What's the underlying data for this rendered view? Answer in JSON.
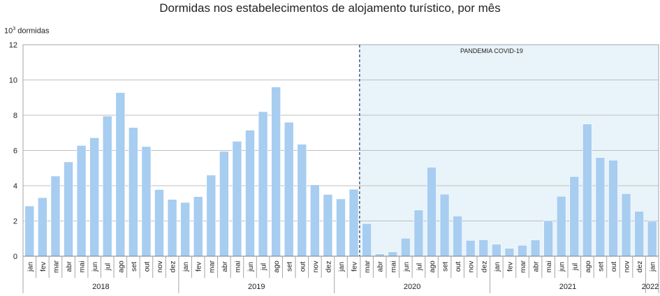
{
  "chart_data": {
    "type": "bar",
    "title": "Dormidas nos estabelecimentos de alojamento turístico, por mês",
    "ylabel_base": "10",
    "ylabel_exp": "3",
    "ylabel_rest": " dormidas",
    "ylim": [
      0,
      12
    ],
    "yticks": [
      "0",
      "2",
      "4",
      "6",
      "8",
      "10",
      "12"
    ],
    "grid": true,
    "bar_color": "#a7cdf0",
    "shade_color": "#e8f3fa",
    "annotation": "PANDEMIA COVID-19",
    "months": [
      "jan",
      "fev",
      "mar",
      "abr",
      "mai",
      "jun",
      "jul",
      "ago",
      "set",
      "out",
      "nov",
      "dez"
    ],
    "years": [
      {
        "label": "2018",
        "values": [
          2.85,
          3.32,
          4.55,
          5.35,
          6.28,
          6.72,
          7.95,
          9.28,
          7.3,
          6.22,
          3.78,
          3.22
        ]
      },
      {
        "label": "2019",
        "values": [
          3.05,
          3.38,
          4.6,
          5.95,
          6.52,
          7.15,
          8.2,
          9.6,
          7.6,
          6.35,
          4.05,
          3.5
        ]
      },
      {
        "label": "2020",
        "values": [
          3.25,
          3.8,
          1.85,
          0.13,
          0.25,
          1.02,
          2.62,
          5.05,
          3.52,
          2.28,
          0.9,
          0.93
        ]
      },
      {
        "label": "2021",
        "values": [
          0.68,
          0.45,
          0.62,
          0.92,
          2.02,
          3.4,
          4.52,
          7.5,
          5.6,
          5.45,
          3.55,
          2.55
        ]
      },
      {
        "label": "2022",
        "values": [
          1.98
        ]
      }
    ],
    "pandemic_start_index": 26
  }
}
